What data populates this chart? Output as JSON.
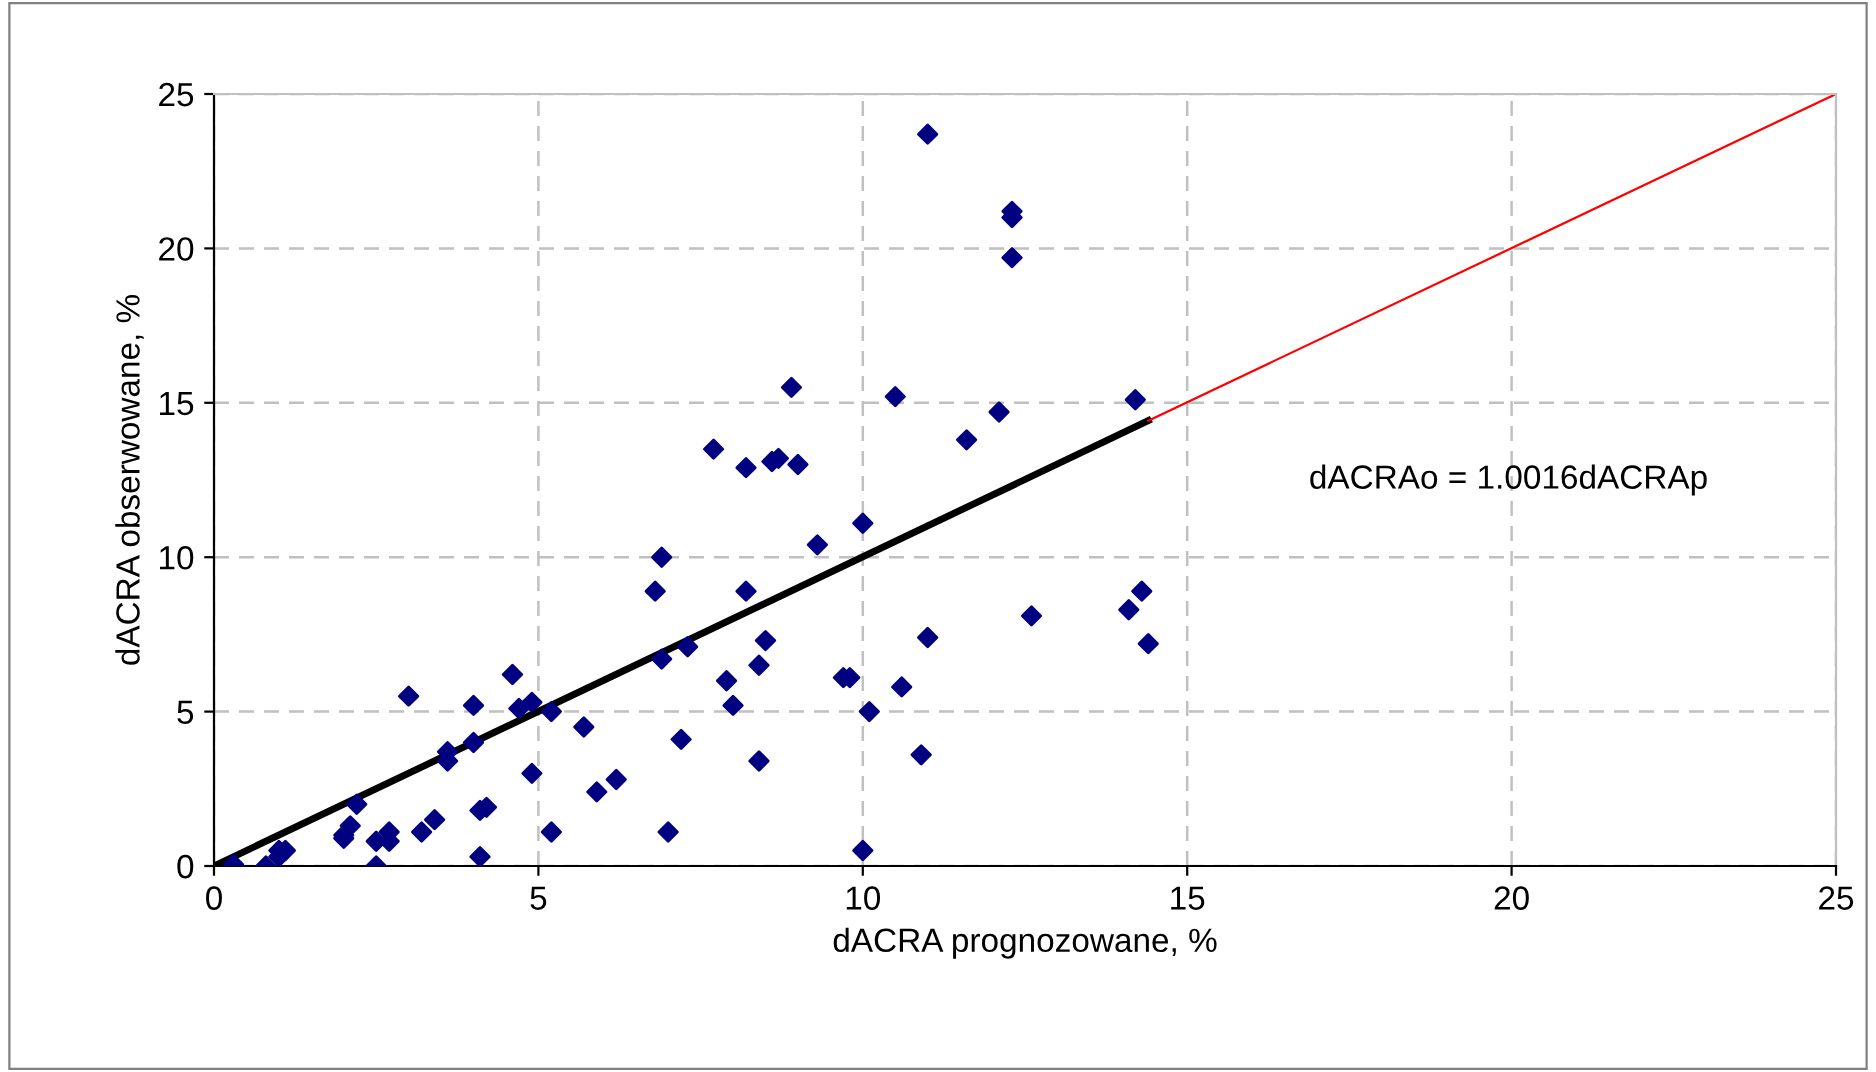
{
  "chart_data": {
    "type": "scatter",
    "xlabel": "dACRA prognozowane, %",
    "ylabel": "dACRA obserwowane, %",
    "xlim": [
      0,
      25
    ],
    "ylim": [
      0,
      25
    ],
    "xticks": [
      0,
      5,
      10,
      15,
      20,
      25
    ],
    "yticks": [
      0,
      5,
      10,
      15,
      20,
      25
    ],
    "grid": true,
    "marker": "diamond",
    "annotations": [
      "dACRAo = 1.0016dACRAp"
    ],
    "series": [
      {
        "color": "#000080",
        "x": [
          0.3,
          0.8,
          1.0,
          1.1,
          1.0,
          2.0,
          2.1,
          2.0,
          2.2,
          2.5,
          2.5,
          2.7,
          2.7,
          3.0,
          3.2,
          3.4,
          3.6,
          3.6,
          4.0,
          4.0,
          4.1,
          4.1,
          4.2,
          4.6,
          4.7,
          4.9,
          4.9,
          5.2,
          5.2,
          5.7,
          5.9,
          6.2,
          6.8,
          6.9,
          6.9,
          7.0,
          7.2,
          7.3,
          7.7,
          7.9,
          8.0,
          8.2,
          8.2,
          8.4,
          8.4,
          8.5,
          8.6,
          8.7,
          8.9,
          9.0,
          9.3,
          9.7,
          9.8,
          10.0,
          10.0,
          10.1,
          10.5,
          10.6,
          10.9,
          11.0,
          11.0,
          11.6,
          12.1,
          12.3,
          12.3,
          12.3,
          12.6,
          14.1,
          14.2,
          14.3,
          14.4
        ],
        "values": [
          0.05,
          0,
          0.5,
          0.5,
          0.3,
          1.0,
          1.3,
          0.9,
          2.0,
          0.8,
          0,
          1.1,
          0.8,
          5.5,
          1.1,
          1.5,
          3.4,
          3.7,
          4.0,
          5.2,
          0.3,
          1.8,
          1.9,
          6.2,
          5.1,
          5.3,
          3.0,
          5.0,
          1.1,
          4.5,
          2.4,
          2.8,
          8.9,
          10.0,
          6.7,
          1.1,
          4.1,
          7.1,
          13.5,
          6.0,
          5.2,
          8.9,
          12.9,
          3.4,
          6.5,
          7.3,
          13.1,
          13.2,
          15.5,
          13.0,
          10.4,
          6.1,
          6.1,
          11.1,
          0.5,
          5.0,
          15.2,
          5.8,
          3.6,
          23.7,
          7.4,
          13.8,
          14.7,
          19.7,
          21.0,
          21.2,
          8.1,
          8.3,
          15.1,
          8.9,
          7.2
        ]
      },
      {
        "type": "line",
        "color": "#000000",
        "marker": "none",
        "x": [
          0,
          14.4
        ],
        "values": [
          0,
          14.42
        ]
      },
      {
        "type": "line",
        "color": "#ff0000",
        "marker": "none",
        "x": [
          14.4,
          25
        ],
        "values": [
          14.42,
          25
        ]
      }
    ]
  }
}
